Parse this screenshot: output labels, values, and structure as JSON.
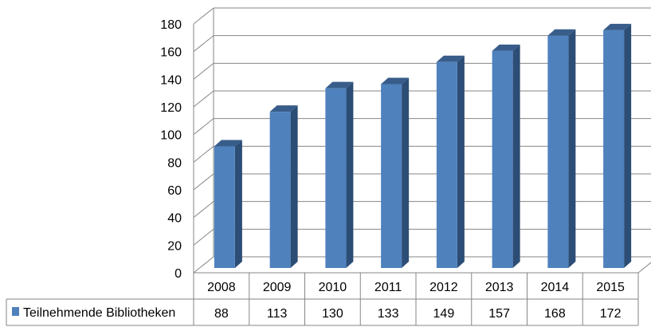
{
  "chart_data": {
    "type": "bar",
    "style": "3d-column-with-data-table",
    "categories": [
      "2008",
      "2009",
      "2010",
      "2011",
      "2012",
      "2013",
      "2014",
      "2015"
    ],
    "series": [
      {
        "name": "Teilnehmende Bibliotheken",
        "values": [
          88,
          113,
          130,
          133,
          149,
          157,
          168,
          172
        ],
        "color": "#4f81bd"
      }
    ],
    "ylim": [
      0,
      180
    ],
    "yticks": [
      0,
      20,
      40,
      60,
      80,
      100,
      120,
      140,
      160,
      180
    ],
    "grid": true,
    "legend": "data-table-left",
    "colors": {
      "bar_front": "#4f81bd",
      "bar_side": "#2c4d75",
      "bar_top": "#385d8a",
      "grid": "#868686",
      "table_line": "#868686"
    }
  }
}
